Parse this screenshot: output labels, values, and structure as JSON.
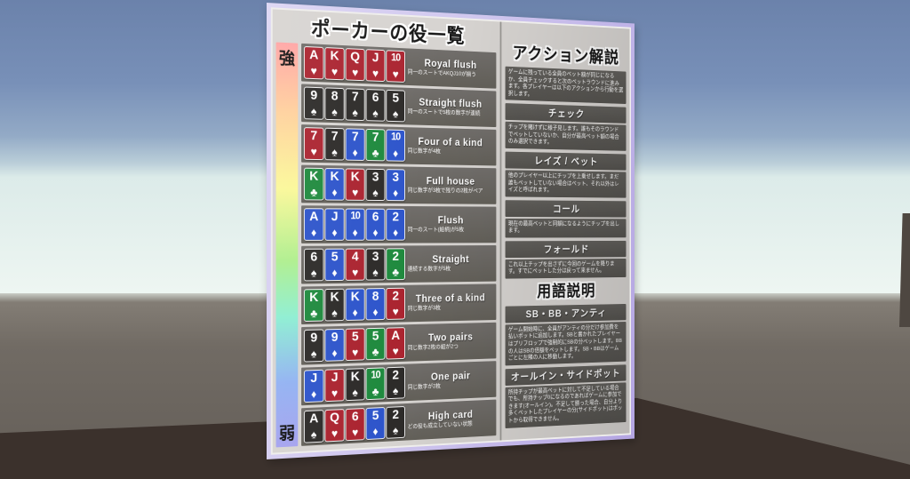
{
  "colors": {
    "sky_top": "#6b82ab",
    "horizon": "#eef6f2",
    "ground": "#6e6862",
    "ground_shadow": "#3b312c",
    "board_frame": "#c3b4e8",
    "board_surface": "#d7d4d1",
    "row_bar": "#6b6865",
    "strength_gradient": [
      "#ffa4a4",
      "#ffd09c",
      "#fbf898",
      "#aeee8d",
      "#8deed2",
      "#a5a2ee"
    ]
  },
  "suits": {
    "heart": {
      "symbol": "♥",
      "color": "#ab2430",
      "icon_name": "heart-icon"
    },
    "spade": {
      "symbol": "♠",
      "color": "#2d2b29",
      "icon_name": "spade-icon"
    },
    "diamond": {
      "symbol": "♦",
      "color": "#2e55cb",
      "icon_name": "diamond-icon"
    },
    "club": {
      "symbol": "♣",
      "color": "#1f8a3e",
      "icon_name": "club-icon"
    }
  },
  "board": {
    "left": {
      "title": "ポーカーの役一覧",
      "strong_label": "強",
      "weak_label": "弱",
      "hands": [
        {
          "name": "Royal flush",
          "desc": "同一のスートでAKQJ10が揃う",
          "cards": [
            {
              "rank": "A",
              "suit": "heart"
            },
            {
              "rank": "K",
              "suit": "heart"
            },
            {
              "rank": "Q",
              "suit": "heart"
            },
            {
              "rank": "J",
              "suit": "heart"
            },
            {
              "rank": "10",
              "suit": "heart"
            }
          ]
        },
        {
          "name": "Straight flush",
          "desc": "同一のスートで5枚の数字が連続",
          "cards": [
            {
              "rank": "9",
              "suit": "spade"
            },
            {
              "rank": "8",
              "suit": "spade"
            },
            {
              "rank": "7",
              "suit": "spade"
            },
            {
              "rank": "6",
              "suit": "spade"
            },
            {
              "rank": "5",
              "suit": "spade"
            }
          ]
        },
        {
          "name": "Four of a kind",
          "desc": "同じ数字が4枚",
          "cards": [
            {
              "rank": "7",
              "suit": "heart"
            },
            {
              "rank": "7",
              "suit": "spade"
            },
            {
              "rank": "7",
              "suit": "diamond"
            },
            {
              "rank": "7",
              "suit": "club"
            },
            {
              "rank": "10",
              "suit": "diamond"
            }
          ]
        },
        {
          "name": "Full house",
          "desc": "同じ数字が3枚で残りの2枚がペア",
          "cards": [
            {
              "rank": "K",
              "suit": "club"
            },
            {
              "rank": "K",
              "suit": "diamond"
            },
            {
              "rank": "K",
              "suit": "heart"
            },
            {
              "rank": "3",
              "suit": "spade"
            },
            {
              "rank": "3",
              "suit": "diamond"
            }
          ]
        },
        {
          "name": "Flush",
          "desc": "同一のスート(絵柄)が5枚",
          "cards": [
            {
              "rank": "A",
              "suit": "diamond"
            },
            {
              "rank": "J",
              "suit": "diamond"
            },
            {
              "rank": "10",
              "suit": "diamond"
            },
            {
              "rank": "6",
              "suit": "diamond"
            },
            {
              "rank": "2",
              "suit": "diamond"
            }
          ]
        },
        {
          "name": "Straight",
          "desc": "連続する数字が5枚",
          "cards": [
            {
              "rank": "6",
              "suit": "spade"
            },
            {
              "rank": "5",
              "suit": "diamond"
            },
            {
              "rank": "4",
              "suit": "heart"
            },
            {
              "rank": "3",
              "suit": "spade"
            },
            {
              "rank": "2",
              "suit": "club"
            }
          ]
        },
        {
          "name": "Three of a kind",
          "desc": "同じ数字が3枚",
          "cards": [
            {
              "rank": "K",
              "suit": "club"
            },
            {
              "rank": "K",
              "suit": "spade"
            },
            {
              "rank": "K",
              "suit": "diamond"
            },
            {
              "rank": "8",
              "suit": "diamond"
            },
            {
              "rank": "2",
              "suit": "heart"
            }
          ]
        },
        {
          "name": "Two pairs",
          "desc": "同じ数字2枚の組が2つ",
          "cards": [
            {
              "rank": "9",
              "suit": "spade"
            },
            {
              "rank": "9",
              "suit": "diamond"
            },
            {
              "rank": "5",
              "suit": "heart"
            },
            {
              "rank": "5",
              "suit": "club"
            },
            {
              "rank": "A",
              "suit": "heart"
            }
          ]
        },
        {
          "name": "One pair",
          "desc": "同じ数字が2枚",
          "cards": [
            {
              "rank": "J",
              "suit": "diamond"
            },
            {
              "rank": "J",
              "suit": "heart"
            },
            {
              "rank": "K",
              "suit": "spade"
            },
            {
              "rank": "10",
              "suit": "club"
            },
            {
              "rank": "2",
              "suit": "spade"
            }
          ]
        },
        {
          "name": "High card",
          "desc": "どの役も成立していない状態",
          "cards": [
            {
              "rank": "A",
              "suit": "spade"
            },
            {
              "rank": "Q",
              "suit": "heart"
            },
            {
              "rank": "6",
              "suit": "heart"
            },
            {
              "rank": "5",
              "suit": "diamond"
            },
            {
              "rank": "2",
              "suit": "spade"
            }
          ]
        }
      ]
    },
    "right": {
      "title": "アクション解説",
      "intro": "ゲームに残っている全員のベット額が同じになるか、全員チェックすると次のベットラウンドに進みます。各プレイヤーは以下のアクションから行動を選択します。",
      "actions": [
        {
          "title": "チェック",
          "desc": "チップを賭けずに様子見します。誰もそのラウンドでベットしていないか、自分が最高ベット額の場合のみ選択できます。"
        },
        {
          "title": "レイズ / ベット",
          "desc": "他のプレイヤー以上にチップを上乗せします。まだ誰もベットしていない場合はベット、それ以外はレイズと呼ばれます。"
        },
        {
          "title": "コール",
          "desc": "現在の最高ベットと同額になるようにチップを出します。"
        },
        {
          "title": "フォールド",
          "desc": "これ以上チップを出さずに今回のゲームを降ります。すでにベットした分は戻って来ません。"
        }
      ],
      "glossary_title": "用語説明",
      "glossary": [
        {
          "title": "SB・BB・アンティ",
          "desc": "ゲーム開始時に、全員がアンティの分だけ参加費を払いポットに追加します。SBと書かれたプレイヤーはプリフロップで強制的にSBの分ベットします。BBの人はSBの倍額をベットします。SB・BBはゲームごとに左隣の人に移動します。"
        },
        {
          "title": "オールイン・サイドポット",
          "desc": "所持チップが最高ベットに対して不足している場合でも、所持チップ0になるのであればゲームに参加できます(オールイン)。不足して勝った場合、自分より多くベットしたプレイヤーの分(サイドポット)はポットから取得できません。"
        }
      ]
    }
  }
}
